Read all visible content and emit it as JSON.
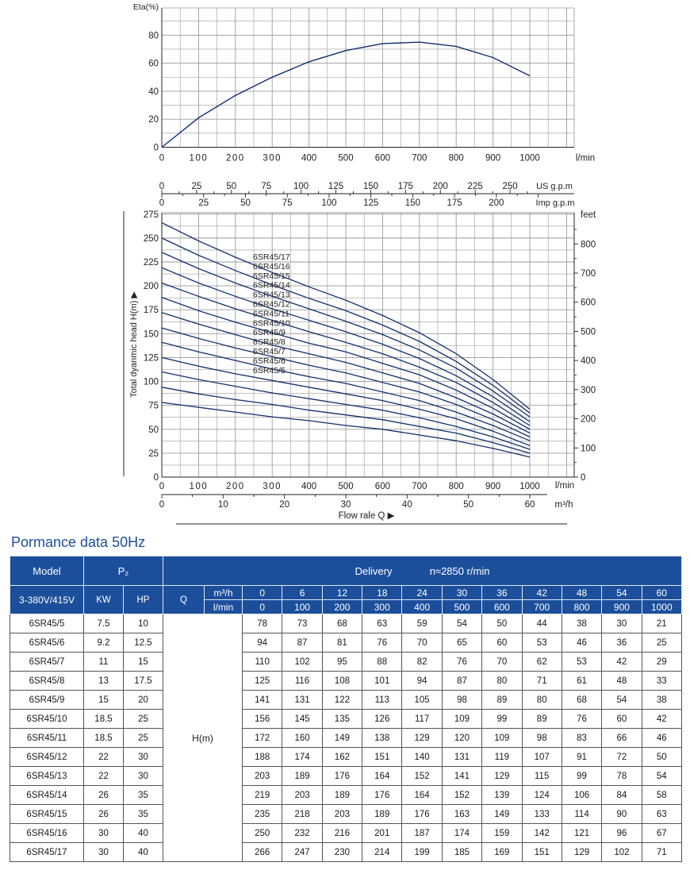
{
  "colors": {
    "curve": "#0f2f6e",
    "grid": "#9a9a9a",
    "header": "#1c4f9b"
  },
  "eta_chart": {
    "ylabel": "Eta(%)",
    "yticks": [
      "0",
      "20",
      "40",
      "60",
      "80"
    ],
    "xticks": [
      "0",
      "100",
      "200",
      "300",
      "400",
      "500",
      "600",
      "700",
      "800",
      "900",
      "1000"
    ],
    "xunit": "l/min"
  },
  "usgpm_scale": {
    "ticks": [
      "0",
      "25",
      "50",
      "75",
      "100",
      "125",
      "150",
      "175",
      "200",
      "225",
      "250"
    ],
    "unit": "US g.p.m"
  },
  "impgpm_scale": {
    "ticks": [
      "0",
      "25",
      "50",
      "75",
      "100",
      "125",
      "150",
      "175",
      "200"
    ],
    "unit": "Imp g.p.m"
  },
  "head_chart": {
    "ylabel": "Total dyanmic head H(m) ▶",
    "yticks": [
      "0",
      "25",
      "50",
      "75",
      "100",
      "125",
      "150",
      "175",
      "200",
      "225",
      "250",
      "275"
    ],
    "feet_label": "feet",
    "feet_ticks": [
      "0",
      "100",
      "200",
      "300",
      "400",
      "500",
      "600",
      "700",
      "800"
    ],
    "xticks": [
      "0",
      "100",
      "200",
      "300",
      "400",
      "500",
      "600",
      "700",
      "800",
      "900",
      "1000"
    ],
    "xunit": "l/min",
    "m3h_ticks": [
      "0",
      "10",
      "20",
      "30",
      "40",
      "50",
      "60"
    ],
    "m3h_unit": "m³/h",
    "flow_label": "Flow rale Q ▶"
  },
  "chart_data": [
    {
      "type": "line",
      "ylabel": "Eta(%)",
      "xlabel": "l/min",
      "ylim": [
        0,
        90
      ],
      "xlim": [
        0,
        1050
      ],
      "grid": true,
      "series": [
        {
          "x": [
            0,
            100,
            200,
            300,
            400,
            500,
            600,
            700,
            800,
            900,
            1000
          ],
          "values": [
            0,
            21,
            37,
            50,
            61,
            69,
            74,
            75,
            72,
            64,
            51
          ]
        }
      ]
    },
    {
      "type": "line",
      "ylabel": "Total dyanmic head H(m)",
      "xlabel": "l/min",
      "ylim": [
        0,
        275
      ],
      "xlim": [
        0,
        1050
      ],
      "grid": true,
      "x": [
        0,
        100,
        200,
        300,
        400,
        500,
        600,
        700,
        800,
        900,
        1000
      ],
      "series": [
        {
          "name": "6SR45/17",
          "values": [
            266,
            247,
            230,
            214,
            199,
            185,
            169,
            151,
            129,
            102,
            71
          ]
        },
        {
          "name": "6SR45/16",
          "values": [
            250,
            232,
            216,
            201,
            187,
            174,
            159,
            142,
            121,
            96,
            67
          ]
        },
        {
          "name": "6SR45/15",
          "values": [
            235,
            218,
            203,
            189,
            176,
            163,
            149,
            133,
            114,
            90,
            63
          ]
        },
        {
          "name": "6SR45/14",
          "values": [
            219,
            203,
            189,
            176,
            164,
            152,
            139,
            124,
            106,
            84,
            58
          ]
        },
        {
          "name": "6SR45/13",
          "values": [
            203,
            189,
            176,
            164,
            152,
            141,
            129,
            115,
            99,
            78,
            54
          ]
        },
        {
          "name": "6SR45/12",
          "values": [
            188,
            174,
            162,
            151,
            140,
            131,
            119,
            107,
            91,
            72,
            50
          ]
        },
        {
          "name": "6SR45/11",
          "values": [
            172,
            160,
            149,
            138,
            129,
            120,
            109,
            98,
            83,
            66,
            46
          ]
        },
        {
          "name": "6SR45/10",
          "values": [
            156,
            145,
            135,
            126,
            117,
            109,
            99,
            89,
            76,
            60,
            42
          ]
        },
        {
          "name": "6SR45/9",
          "values": [
            141,
            131,
            122,
            113,
            105,
            98,
            89,
            80,
            68,
            54,
            38
          ]
        },
        {
          "name": "6SR45/8",
          "values": [
            125,
            116,
            108,
            101,
            94,
            87,
            80,
            71,
            61,
            48,
            33
          ]
        },
        {
          "name": "6SR45/7",
          "values": [
            110,
            102,
            95,
            88,
            82,
            76,
            70,
            62,
            53,
            42,
            29
          ]
        },
        {
          "name": "6SR45/6",
          "values": [
            94,
            87,
            81,
            76,
            70,
            65,
            60,
            53,
            46,
            36,
            25
          ]
        },
        {
          "name": "6SR45/5",
          "values": [
            78,
            73,
            68,
            63,
            59,
            54,
            50,
            44,
            38,
            30,
            21
          ]
        }
      ]
    }
  ],
  "table": {
    "title": "Pormance data 50Hz",
    "h_model": "Model",
    "h_p2": "P₂",
    "h_delivery": "Delivery",
    "h_speed": "n≈2850 r/min",
    "h_volt": "3-380V/415V",
    "h_kw": "KW",
    "h_hp": "HP",
    "h_q": "Q",
    "h_m3h": "m³/h",
    "h_lmin": "l/min",
    "m3h": [
      "0",
      "6",
      "12",
      "18",
      "24",
      "30",
      "36",
      "42",
      "48",
      "54",
      "60"
    ],
    "lmin": [
      "0",
      "100",
      "200",
      "300",
      "400",
      "500",
      "600",
      "700",
      "800",
      "900",
      "1000"
    ],
    "hm_label": "H(m)",
    "rows": [
      {
        "model": "6SR45/5",
        "kw": "7.5",
        "hp": "10",
        "h": [
          "78",
          "73",
          "68",
          "63",
          "59",
          "54",
          "50",
          "44",
          "38",
          "30",
          "21"
        ]
      },
      {
        "model": "6SR45/6",
        "kw": "9.2",
        "hp": "12.5",
        "h": [
          "94",
          "87",
          "81",
          "76",
          "70",
          "65",
          "60",
          "53",
          "46",
          "36",
          "25"
        ]
      },
      {
        "model": "6SR45/7",
        "kw": "11",
        "hp": "15",
        "h": [
          "110",
          "102",
          "95",
          "88",
          "82",
          "76",
          "70",
          "62",
          "53",
          "42",
          "29"
        ]
      },
      {
        "model": "6SR45/8",
        "kw": "13",
        "hp": "17.5",
        "h": [
          "125",
          "116",
          "108",
          "101",
          "94",
          "87",
          "80",
          "71",
          "61",
          "48",
          "33"
        ]
      },
      {
        "model": "6SR45/9",
        "kw": "15",
        "hp": "20",
        "h": [
          "141",
          "131",
          "122",
          "113",
          "105",
          "98",
          "89",
          "80",
          "68",
          "54",
          "38"
        ]
      },
      {
        "model": "6SR45/10",
        "kw": "18.5",
        "hp": "25",
        "h": [
          "156",
          "145",
          "135",
          "126",
          "117",
          "109",
          "99",
          "89",
          "76",
          "60",
          "42"
        ]
      },
      {
        "model": "6SR45/11",
        "kw": "18.5",
        "hp": "25",
        "h": [
          "172",
          "160",
          "149",
          "138",
          "129",
          "120",
          "109",
          "98",
          "83",
          "66",
          "46"
        ]
      },
      {
        "model": "6SR45/12",
        "kw": "22",
        "hp": "30",
        "h": [
          "188",
          "174",
          "162",
          "151",
          "140",
          "131",
          "119",
          "107",
          "91",
          "72",
          "50"
        ]
      },
      {
        "model": "6SR45/13",
        "kw": "22",
        "hp": "30",
        "h": [
          "203",
          "189",
          "176",
          "164",
          "152",
          "141",
          "129",
          "115",
          "99",
          "78",
          "54"
        ]
      },
      {
        "model": "6SR45/14",
        "kw": "26",
        "hp": "35",
        "h": [
          "219",
          "203",
          "189",
          "176",
          "164",
          "152",
          "139",
          "124",
          "106",
          "84",
          "58"
        ]
      },
      {
        "model": "6SR45/15",
        "kw": "26",
        "hp": "35",
        "h": [
          "235",
          "218",
          "203",
          "189",
          "176",
          "163",
          "149",
          "133",
          "114",
          "90",
          "63"
        ]
      },
      {
        "model": "6SR45/16",
        "kw": "30",
        "hp": "40",
        "h": [
          "250",
          "232",
          "216",
          "201",
          "187",
          "174",
          "159",
          "142",
          "121",
          "96",
          "67"
        ]
      },
      {
        "model": "6SR45/17",
        "kw": "30",
        "hp": "40",
        "h": [
          "266",
          "247",
          "230",
          "214",
          "199",
          "185",
          "169",
          "151",
          "129",
          "102",
          "71"
        ]
      }
    ]
  }
}
